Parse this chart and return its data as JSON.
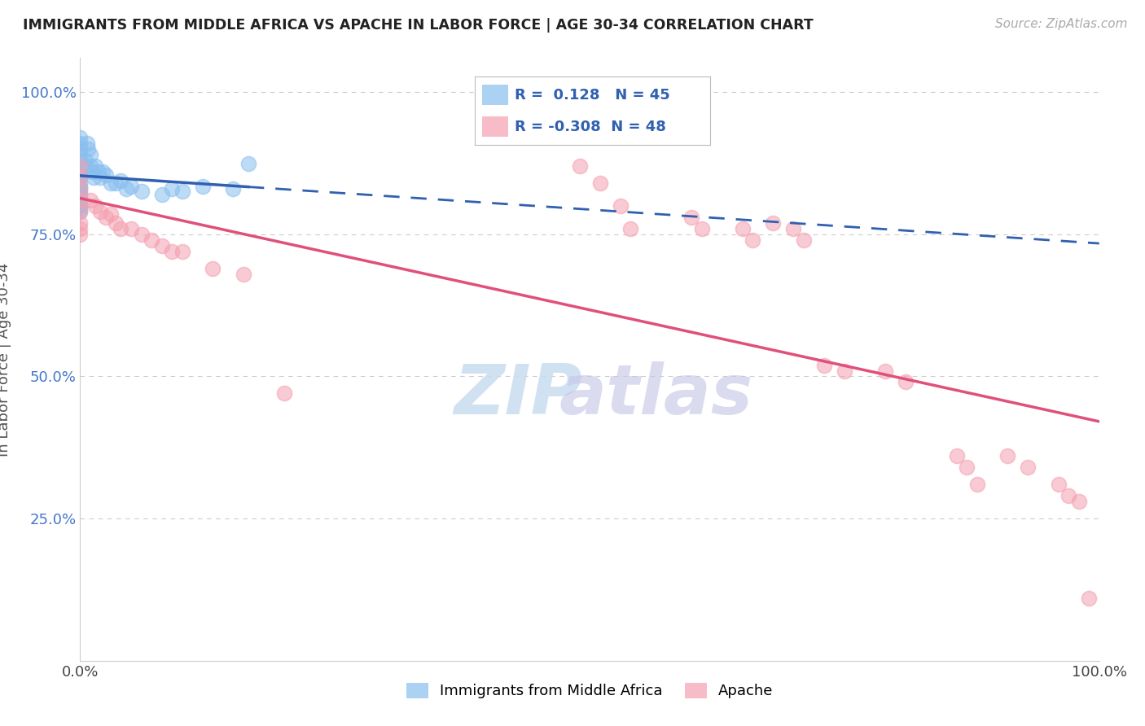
{
  "title": "IMMIGRANTS FROM MIDDLE AFRICA VS APACHE IN LABOR FORCE | AGE 30-34 CORRELATION CHART",
  "source": "Source: ZipAtlas.com",
  "ylabel": "In Labor Force | Age 30-34",
  "xlim": [
    0.0,
    1.0
  ],
  "ylim": [
    0.0,
    1.06
  ],
  "xticks": [
    0.0,
    0.25,
    0.5,
    0.75,
    1.0
  ],
  "xticklabels": [
    "0.0%",
    "",
    "",
    "",
    "100.0%"
  ],
  "yticks": [
    0.0,
    0.25,
    0.5,
    0.75,
    1.0
  ],
  "yticklabels": [
    "",
    "25.0%",
    "50.0%",
    "75.0%",
    "100.0%"
  ],
  "blue_R": 0.128,
  "blue_N": 45,
  "pink_R": -0.308,
  "pink_N": 48,
  "blue_color": "#89BFEF",
  "pink_color": "#F4A0B0",
  "blue_trend_color": "#3060B0",
  "pink_trend_color": "#E0507A",
  "background_color": "#FFFFFF",
  "grid_color": "#CCCCCC",
  "blue_x": [
    0.0,
    0.0,
    0.0,
    0.0,
    0.0,
    0.0,
    0.0,
    0.0,
    0.0,
    0.0,
    0.0,
    0.0,
    0.0,
    0.0,
    0.0,
    0.0,
    0.0,
    0.0,
    0.0,
    0.0,
    0.005,
    0.005,
    0.007,
    0.008,
    0.01,
    0.01,
    0.012,
    0.013,
    0.015,
    0.018,
    0.02,
    0.022,
    0.025,
    0.03,
    0.035,
    0.04,
    0.045,
    0.05,
    0.06,
    0.08,
    0.09,
    0.1,
    0.12,
    0.15,
    0.165
  ],
  "blue_y": [
    0.92,
    0.91,
    0.9,
    0.89,
    0.88,
    0.87,
    0.86,
    0.855,
    0.85,
    0.84,
    0.835,
    0.83,
    0.825,
    0.82,
    0.815,
    0.81,
    0.805,
    0.8,
    0.795,
    0.79,
    0.88,
    0.87,
    0.91,
    0.9,
    0.89,
    0.87,
    0.86,
    0.85,
    0.87,
    0.86,
    0.85,
    0.86,
    0.855,
    0.84,
    0.84,
    0.845,
    0.83,
    0.835,
    0.825,
    0.82,
    0.83,
    0.825,
    0.835,
    0.83,
    0.875
  ],
  "pink_x": [
    0.0,
    0.0,
    0.0,
    0.0,
    0.0,
    0.0,
    0.0,
    0.0,
    0.01,
    0.015,
    0.02,
    0.025,
    0.03,
    0.035,
    0.04,
    0.05,
    0.06,
    0.07,
    0.08,
    0.09,
    0.1,
    0.13,
    0.16,
    0.2,
    0.49,
    0.51,
    0.53,
    0.54,
    0.6,
    0.61,
    0.65,
    0.66,
    0.68,
    0.7,
    0.71,
    0.73,
    0.75,
    0.79,
    0.81,
    0.86,
    0.87,
    0.88,
    0.91,
    0.93,
    0.96,
    0.97,
    0.98,
    0.99
  ],
  "pink_y": [
    0.87,
    0.85,
    0.83,
    0.81,
    0.79,
    0.77,
    0.76,
    0.75,
    0.81,
    0.8,
    0.79,
    0.78,
    0.785,
    0.77,
    0.76,
    0.76,
    0.75,
    0.74,
    0.73,
    0.72,
    0.72,
    0.69,
    0.68,
    0.47,
    0.87,
    0.84,
    0.8,
    0.76,
    0.78,
    0.76,
    0.76,
    0.74,
    0.77,
    0.76,
    0.74,
    0.52,
    0.51,
    0.51,
    0.49,
    0.36,
    0.34,
    0.31,
    0.36,
    0.34,
    0.31,
    0.29,
    0.28,
    0.11
  ]
}
